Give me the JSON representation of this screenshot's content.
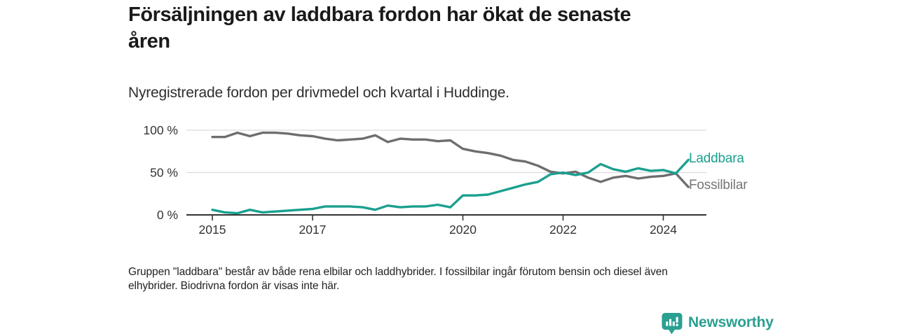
{
  "header": {
    "title_line1": "Försäljningen av laddbara fordon har ökat de senaste",
    "title_line2": "åren",
    "subtitle": "Nyregistrerade fordon per drivmedel och kvartal i Huddinge."
  },
  "chart_data": {
    "type": "line",
    "title": "Försäljningen av laddbara fordon har ökat de senaste åren",
    "subtitle": "Nyregistrerade fordon per drivmedel och kvartal i Huddinge.",
    "x_unit": "quarter",
    "x_start": "2015 Q1",
    "x_end": "2024 Q3",
    "x_tick_years": [
      2015,
      2017,
      2020,
      2022,
      2024
    ],
    "x_tick_labels": [
      "2015",
      "2017",
      "2020",
      "2022",
      "2024"
    ],
    "y_ticks": [
      {
        "value": 0,
        "label": "0 %"
      },
      {
        "value": 50,
        "label": "50 %"
      },
      {
        "value": 100,
        "label": "100 %"
      }
    ],
    "ylim": [
      0,
      100
    ],
    "grid": "horizontal-50-100",
    "legend_position": "end-of-line-labels",
    "series": [
      {
        "name": "Laddbara",
        "color": "#1ba08f",
        "label_color": "#1ba08f",
        "values": [
          6,
          3,
          2,
          6,
          3,
          4,
          5,
          6,
          7,
          10,
          10,
          10,
          9,
          6,
          11,
          9,
          10,
          10,
          12,
          9,
          23,
          23,
          24,
          28,
          32,
          36,
          39,
          48,
          50,
          47,
          50,
          60,
          54,
          51,
          55,
          52,
          53,
          49,
          65
        ]
      },
      {
        "name": "Fossilbilar",
        "color": "#6e6e6e",
        "label_color": "#767676",
        "values": [
          92,
          92,
          97,
          93,
          97,
          97,
          96,
          94,
          93,
          90,
          88,
          89,
          90,
          94,
          86,
          90,
          89,
          89,
          87,
          88,
          78,
          75,
          73,
          70,
          65,
          63,
          58,
          51,
          49,
          51,
          44,
          39,
          44,
          46,
          43,
          45,
          46,
          49,
          33
        ]
      }
    ],
    "axis_color": "#343434",
    "gridline_color": "#dcdcdc"
  },
  "footnote": {
    "line1": "Gruppen \"laddbara\" består av både rena elbilar och laddhybrider. I fossilbilar ingår förutom bensin och diesel även",
    "line2": "elhybrider. Biodrivna fordon är visas inte här."
  },
  "logo": {
    "text": "Newsworthy",
    "color": "#2aa091"
  }
}
